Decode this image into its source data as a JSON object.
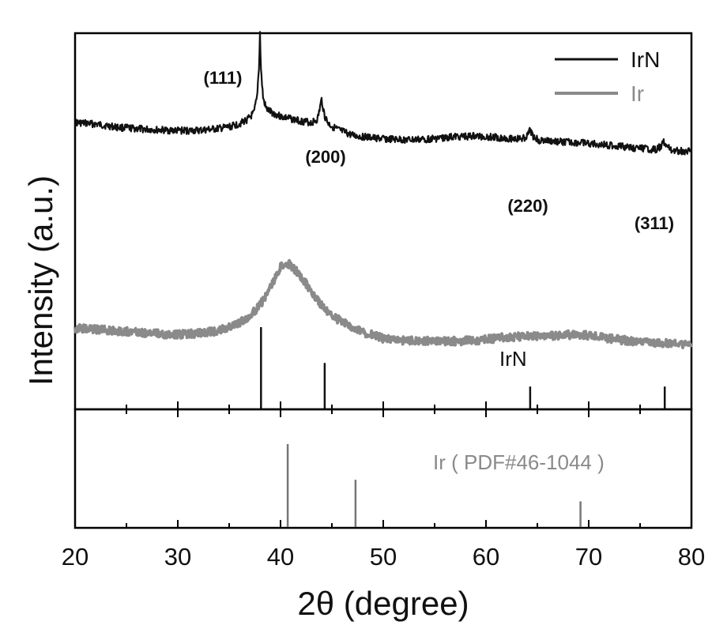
{
  "chart_data": {
    "type": "line",
    "xlabel": "2θ (degree)",
    "ylabel": "Intensity (a.u.)",
    "xlim": [
      20,
      80
    ],
    "x_ticks": [
      20,
      30,
      40,
      50,
      60,
      70,
      80
    ],
    "x_tick_labels": [
      "20",
      "30",
      "40",
      "50",
      "60",
      "70",
      "80"
    ],
    "ylim": [
      0,
      100
    ],
    "grid": false,
    "legend_position": "top-right",
    "colors": {
      "IrN": "#111111",
      "Ir": "#8a8a8a",
      "axes": "#000000"
    },
    "series": [
      {
        "name": "IrN",
        "color": "#111111",
        "x": [
          20,
          22,
          24,
          26,
          28,
          30,
          32,
          34,
          35,
          36,
          36.8,
          37.4,
          37.7,
          37.9,
          38.0,
          38.1,
          38.3,
          38.6,
          39,
          40,
          41,
          42,
          43,
          43.6,
          44.0,
          44.3,
          44.7,
          45.5,
          47,
          49,
          51,
          53,
          55,
          57,
          59,
          61,
          62.5,
          63.5,
          64.0,
          64.3,
          64.6,
          65.2,
          67,
          69,
          71,
          73,
          75,
          76.5,
          77.0,
          77.3,
          77.6,
          78.2,
          80
        ],
        "y": [
          71,
          70.5,
          69.5,
          69,
          68.6,
          68.4,
          68.4,
          69,
          69.6,
          70.6,
          72,
          74,
          79,
          89,
          100,
          88,
          79,
          75.5,
          74.5,
          73,
          72.2,
          71.5,
          71,
          72,
          78.5,
          73,
          70.5,
          68.8,
          66.8,
          66,
          65.5,
          65.4,
          65.8,
          66.4,
          66.6,
          66.2,
          65.8,
          65.7,
          66.5,
          68.5,
          66.5,
          65.2,
          64.8,
          64.4,
          64,
          63.3,
          62.6,
          62.2,
          63.2,
          64.8,
          63,
          62,
          61.5
        ]
      },
      {
        "name": "Ir",
        "color": "#8a8a8a",
        "x": [
          20,
          22,
          24,
          26,
          28,
          30,
          32,
          34,
          36,
          37,
          38,
          39,
          40,
          40.5,
          41,
          42,
          43,
          44,
          45,
          46,
          47,
          48,
          50,
          52,
          54,
          56,
          58,
          60,
          62,
          64,
          66,
          68,
          70,
          72,
          74,
          76,
          78,
          80
        ],
        "y": [
          38,
          37.5,
          37,
          36.5,
          35.8,
          35.5,
          36,
          37,
          40,
          43,
          47,
          54,
          62,
          64,
          63,
          58.5,
          52.5,
          47,
          43,
          40.5,
          38.3,
          36.5,
          34,
          33.2,
          33,
          32.8,
          33,
          33.6,
          34.5,
          34.8,
          35,
          35.4,
          35.2,
          34,
          33,
          32.3,
          32,
          31.8
        ]
      }
    ],
    "reference_lines": [
      {
        "name": "IrN",
        "positions": [
          38.1,
          44.3,
          64.3,
          77.4
        ],
        "heights": [
          100,
          56,
          27,
          27
        ]
      },
      {
        "name": "Ir ( PDF#46-1044 )",
        "positions": [
          40.7,
          47.3,
          69.2
        ],
        "heights": [
          100,
          57,
          31
        ]
      }
    ],
    "peak_labels": [
      {
        "text": "(111)",
        "x": 38.1
      },
      {
        "text": "(200)",
        "x": 44.3
      },
      {
        "text": "(220)",
        "x": 64.3
      },
      {
        "text": "(311)",
        "x": 77.4
      }
    ]
  },
  "legend": {
    "irn": "IrN",
    "ir": "Ir"
  },
  "ref_labels": {
    "irn": "IrN",
    "ir": "Ir ( PDF#46-1044 )"
  }
}
